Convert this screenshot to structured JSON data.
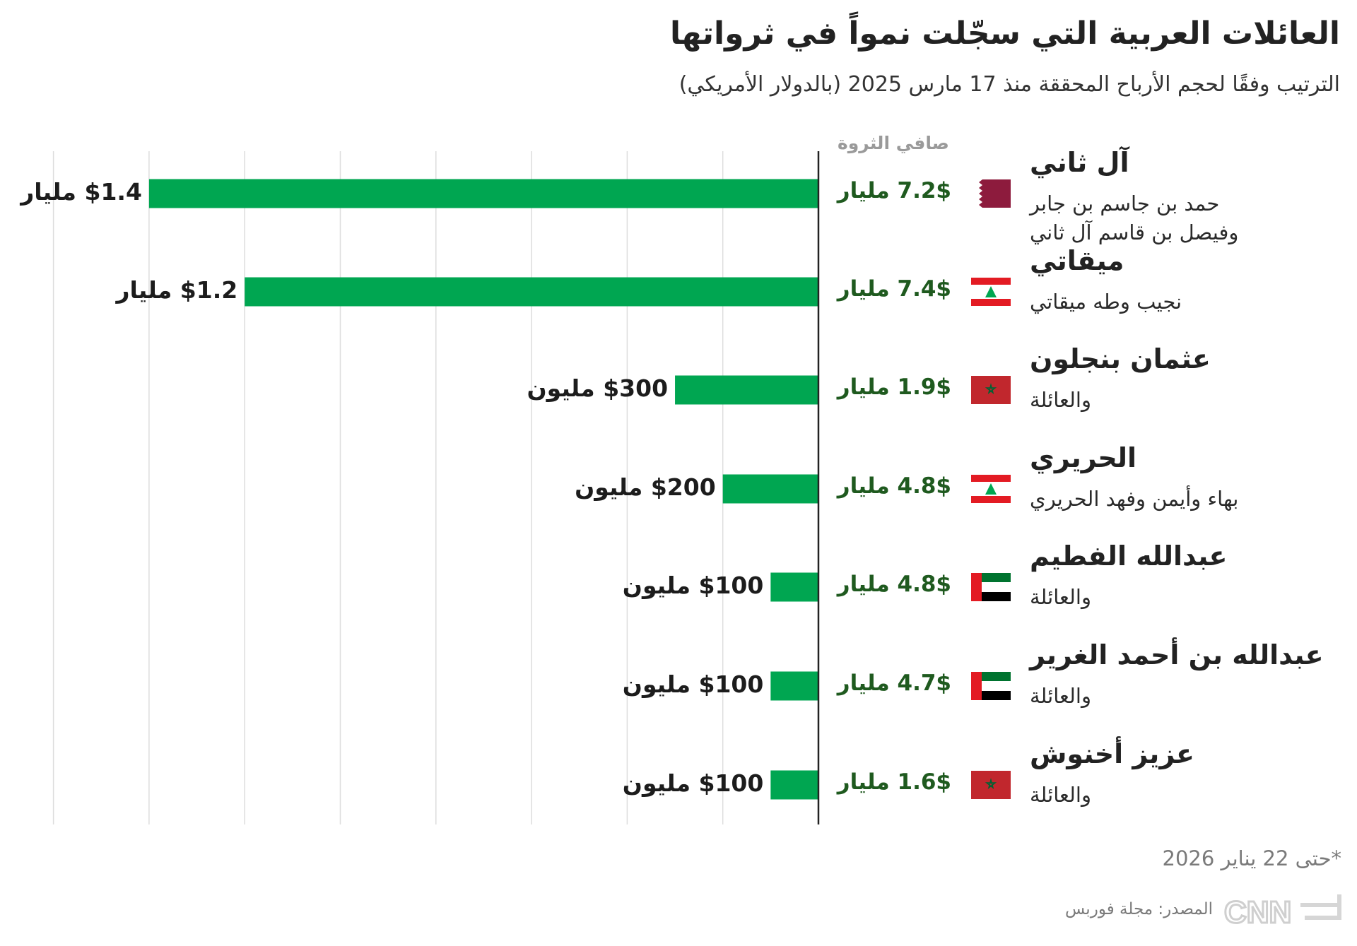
{
  "title": "العائلات العربية التي سجّلت نمواً في ثرواتها",
  "subtitle": "الترتيب وفقًا لحجم الأرباح المحققة منذ 17 مارس 2025 (بالدولار الأمريكي)",
  "column_header": "صافي الثروة",
  "note": "*حتى 22 يناير 2026",
  "source": "المصدر: مجلة فوربس",
  "logo_text": "CNN بالعربية",
  "colors": {
    "bar": "#00a651",
    "net_worth_text": "#1f5a1f",
    "gridline": "#dddddd",
    "axis": "#222222"
  },
  "chart_data": {
    "type": "bar",
    "orientation": "horizontal",
    "unit": "billion USD",
    "xlim": [
      0,
      1.6
    ],
    "grid": true,
    "categories": [
      "آل ثاني",
      "ميقاتي",
      "عثمان بنجلون",
      "الحريري",
      "عبدالله الفطيم",
      "عبدالله بن أحمد الغرير",
      "عزيز أخنوش"
    ],
    "values": [
      1.4,
      1.2,
      0.3,
      0.2,
      0.1,
      0.1,
      0.1
    ],
    "rows": [
      {
        "name": "آل ثاني",
        "members": [
          "حمد بن جاسم بن جابر",
          "وفيصل بن قاسم آل ثاني"
        ],
        "flag": "qatar",
        "net_worth": "7.2$ مليار",
        "gain_label": "$1.4 مليار",
        "gain": 1.4
      },
      {
        "name": "ميقاتي",
        "members": [
          "نجيب وطه ميقاتي"
        ],
        "flag": "lebanon",
        "net_worth": "7.4$ مليار",
        "gain_label": "$1.2 مليار",
        "gain": 1.2
      },
      {
        "name": "عثمان بنجلون",
        "members": [
          "والعائلة"
        ],
        "flag": "morocco",
        "net_worth": "1.9$ مليار",
        "gain_label": "$300 مليون",
        "gain": 0.3
      },
      {
        "name": "الحريري",
        "members": [
          "بهاء وأيمن وفهد الحريري"
        ],
        "flag": "lebanon",
        "net_worth": "4.8$ مليار",
        "gain_label": "$200 مليون",
        "gain": 0.2
      },
      {
        "name": "عبدالله الفطيم",
        "members": [
          "والعائلة"
        ],
        "flag": "uae",
        "net_worth": "4.8$ مليار",
        "gain_label": "$100 مليون",
        "gain": 0.1
      },
      {
        "name": "عبدالله بن أحمد الغرير",
        "members": [
          "والعائلة"
        ],
        "flag": "uae",
        "net_worth": "4.7$ مليار",
        "gain_label": "$100 مليون",
        "gain": 0.1
      },
      {
        "name": "عزيز أخنوش",
        "members": [
          "والعائلة"
        ],
        "flag": "morocco",
        "net_worth": "1.6$ مليار",
        "gain_label": "$100 مليون",
        "gain": 0.1
      }
    ]
  }
}
